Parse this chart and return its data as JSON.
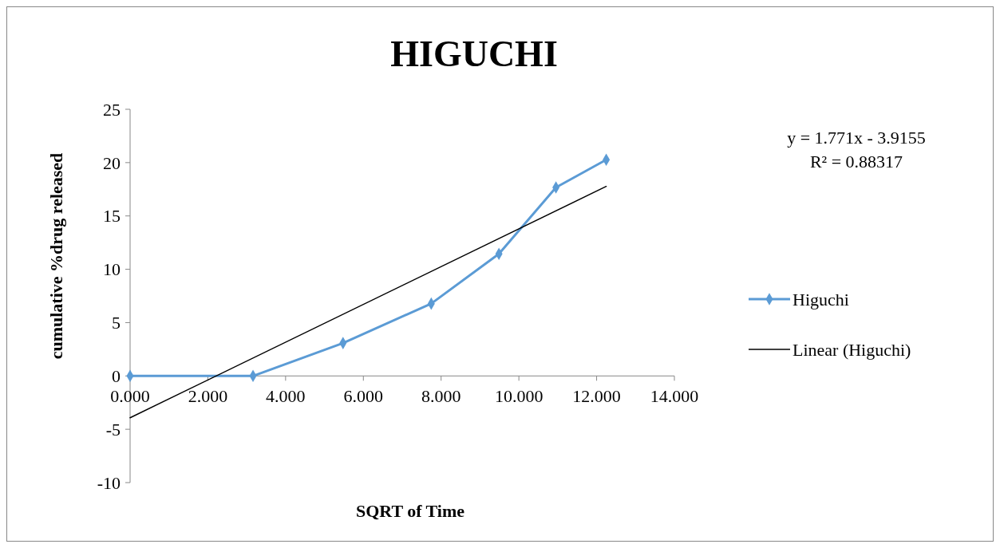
{
  "chart_data": {
    "type": "line",
    "title": "HIGUCHI",
    "xlabel": "SQRT of Time",
    "ylabel": "cumulative %drug released",
    "x": [
      0,
      3.162,
      5.477,
      7.746,
      9.487,
      10.954,
      12.247
    ],
    "series": [
      {
        "name": "Higuchi",
        "color": "#5b9bd5",
        "values": [
          0,
          0,
          3.08,
          6.78,
          11.44,
          17.67,
          20.27
        ]
      },
      {
        "name": "Linear (Higuchi)",
        "color": "#000000",
        "type": "line",
        "x": [
          0,
          12.247
        ],
        "values": [
          -3.92,
          17.77
        ],
        "marker": "none"
      }
    ],
    "xlim": [
      0,
      14
    ],
    "xticks": [
      {
        "value": 0,
        "label": "0.000"
      },
      {
        "value": 2,
        "label": "2.000"
      },
      {
        "value": 4,
        "label": "4.000"
      },
      {
        "value": 6,
        "label": "6.000"
      },
      {
        "value": 8,
        "label": "8.000"
      },
      {
        "value": 10,
        "label": "10.000"
      },
      {
        "value": 12,
        "label": "12.000"
      },
      {
        "value": 14,
        "label": "14.000"
      }
    ],
    "ylim": [
      -10,
      25
    ],
    "yticks": [
      -10,
      -5,
      0,
      5,
      10,
      15,
      20,
      25
    ],
    "annotations": [
      "y = 1.771x - 3.9155",
      "R² = 0.88317"
    ],
    "legend": "right",
    "marker": "diamond",
    "grid": false
  }
}
